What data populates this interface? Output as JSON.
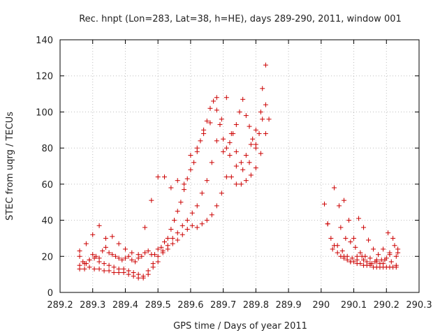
{
  "chart_data": {
    "type": "scatter",
    "title": "Rec. hnpt (Lon=283, Lat=38, h=HE), days 289-290, 2011, window 001",
    "xlabel": "GPS time / Days of year 2011",
    "ylabel": "STEC from uqrg / TECUs",
    "xlim": [
      289.2,
      290.3
    ],
    "ylim": [
      0,
      140
    ],
    "xticks": [
      "289.2",
      "289.3",
      "289.4",
      "289.5",
      "289.6",
      "289.7",
      "289.8",
      "289.9",
      "290",
      "290.1",
      "290.2",
      "290.3"
    ],
    "yticks": [
      "0",
      "20",
      "40",
      "60",
      "80",
      "100",
      "120",
      "140"
    ],
    "grid": true,
    "marker": "+",
    "marker_color": "#cc0000",
    "series": [
      {
        "x": [
          289.26,
          289.275,
          289.29,
          289.305,
          289.32,
          289.335,
          289.35,
          289.365,
          289.38,
          289.395,
          289.41,
          289.425,
          289.44,
          289.455,
          289.47,
          289.485,
          289.5,
          289.515,
          289.53,
          289.545,
          289.56,
          289.575,
          289.59,
          289.605,
          289.62,
          289.635,
          289.65,
          289.665,
          289.68,
          289.695,
          289.71,
          289.725,
          289.74,
          289.755,
          289.77,
          289.785,
          289.8,
          289.815,
          289.83
        ],
        "y": [
          13,
          13,
          14,
          13,
          13,
          12,
          12,
          11,
          11,
          11,
          10,
          9,
          8,
          8,
          10,
          14,
          17,
          22,
          24,
          27,
          29,
          32,
          35,
          37,
          36,
          38,
          40,
          43,
          48,
          55,
          64,
          64,
          60,
          60,
          62,
          65,
          69,
          77,
          88
        ]
      },
      {
        "x": [
          289.26,
          289.275,
          289.29,
          289.305,
          289.32,
          289.335,
          289.35,
          289.365,
          289.38,
          289.395,
          289.41,
          289.425,
          289.44,
          289.455,
          289.47,
          289.485,
          289.5,
          289.515,
          289.53,
          289.545,
          289.56,
          289.575,
          289.59,
          289.605,
          289.62,
          289.635,
          289.65,
          289.665,
          289.68,
          289.695,
          289.71,
          289.725,
          289.74,
          289.755,
          289.77,
          289.785,
          289.8,
          289.815,
          289.83
        ],
        "y": [
          15,
          16,
          18,
          19,
          17,
          16,
          15,
          14,
          13,
          13,
          12,
          11,
          10,
          9,
          12,
          16,
          20,
          23,
          26,
          30,
          33,
          37,
          40,
          44,
          48,
          55,
          62,
          72,
          84,
          96,
          108,
          88,
          78,
          72,
          76,
          82,
          90,
          100,
          126
        ]
      },
      {
        "x": [
          289.26,
          289.27,
          289.28,
          289.29,
          289.3,
          289.31,
          289.32,
          289.33,
          289.34,
          289.35,
          289.36,
          289.37,
          289.38,
          289.39,
          289.4,
          289.41,
          289.42,
          289.43,
          289.44,
          289.45,
          289.46,
          289.47,
          289.48,
          289.49,
          289.5,
          289.51,
          289.52,
          289.53,
          289.54,
          289.55,
          289.56,
          289.57,
          289.58,
          289.59,
          289.6,
          289.61,
          289.62,
          289.63,
          289.64,
          289.65,
          289.66,
          289.67,
          289.68,
          289.69,
          289.7,
          289.71,
          289.72,
          289.73,
          289.74,
          289.75,
          289.76,
          289.77,
          289.78,
          289.79,
          289.8,
          289.81,
          289.82,
          289.83
        ],
        "y": [
          20,
          17,
          16,
          18,
          21,
          20,
          19,
          23,
          25,
          22,
          21,
          20,
          19,
          18,
          19,
          20,
          18,
          17,
          19,
          20,
          22,
          23,
          21,
          21,
          24,
          25,
          28,
          30,
          35,
          40,
          45,
          50,
          57,
          63,
          68,
          72,
          78,
          84,
          90,
          95,
          102,
          106,
          101,
          93,
          85,
          80,
          83,
          88,
          93,
          100,
          107,
          98,
          92,
          85,
          82,
          88,
          96,
          104
        ]
      },
      {
        "x": [
          289.26,
          289.28,
          289.3,
          289.32,
          289.34,
          289.36,
          289.38,
          289.4,
          289.42,
          289.44,
          289.46,
          289.48,
          289.5,
          289.52,
          289.54,
          289.56,
          289.58,
          289.6,
          289.62,
          289.64,
          289.66,
          289.68,
          289.7,
          289.72,
          289.74,
          289.76,
          289.78,
          289.8,
          289.82,
          289.84
        ],
        "y": [
          23,
          27,
          32,
          37,
          30,
          31,
          27,
          24,
          22,
          21,
          36,
          51,
          64,
          64,
          58,
          62,
          60,
          76,
          80,
          88,
          94,
          108,
          78,
          76,
          70,
          68,
          72,
          80,
          113,
          96
        ]
      },
      {
        "x": [
          290.01,
          290.02,
          290.03,
          290.04,
          290.05,
          290.06,
          290.07,
          290.08,
          290.09,
          290.1,
          290.11,
          290.12,
          290.13,
          290.14,
          290.15,
          290.16,
          290.17,
          290.18,
          290.19,
          290.2,
          290.21,
          290.22,
          290.23
        ],
        "y": [
          49,
          38,
          30,
          26,
          22,
          20,
          19,
          18,
          17,
          17,
          16,
          16,
          15,
          15,
          15,
          14,
          14,
          14,
          14,
          14,
          14,
          14,
          14
        ]
      },
      {
        "x": [
          290.02,
          290.035,
          290.05,
          290.065,
          290.08,
          290.095,
          290.11,
          290.125,
          290.14,
          290.155,
          290.17,
          290.185,
          290.2,
          290.215,
          290.23
        ],
        "y": [
          38,
          24,
          26,
          23,
          20,
          19,
          18,
          20,
          17,
          16,
          17,
          18,
          19,
          17,
          15
        ]
      },
      {
        "x": [
          290.04,
          290.055,
          290.07,
          290.085,
          290.1,
          290.115,
          290.13,
          290.145,
          290.16,
          290.175,
          290.19,
          290.205,
          290.22,
          290.235
        ],
        "y": [
          58,
          48,
          51,
          40,
          30,
          41,
          36,
          29,
          24,
          21,
          24,
          33,
          30,
          22
        ]
      },
      {
        "x": [
          290.06,
          290.075,
          290.09,
          290.105,
          290.12,
          290.135,
          290.15,
          290.165,
          290.18,
          290.195,
          290.21,
          290.225,
          290.235
        ],
        "y": [
          36,
          30,
          28,
          25,
          22,
          20,
          19,
          17,
          16,
          18,
          22,
          26,
          24
        ]
      },
      {
        "x": [
          290.07,
          290.09,
          290.11,
          290.13,
          290.15,
          290.17,
          290.19,
          290.21,
          290.23
        ],
        "y": [
          20,
          17,
          20,
          18,
          16,
          18,
          16,
          21,
          20
        ]
      }
    ]
  }
}
